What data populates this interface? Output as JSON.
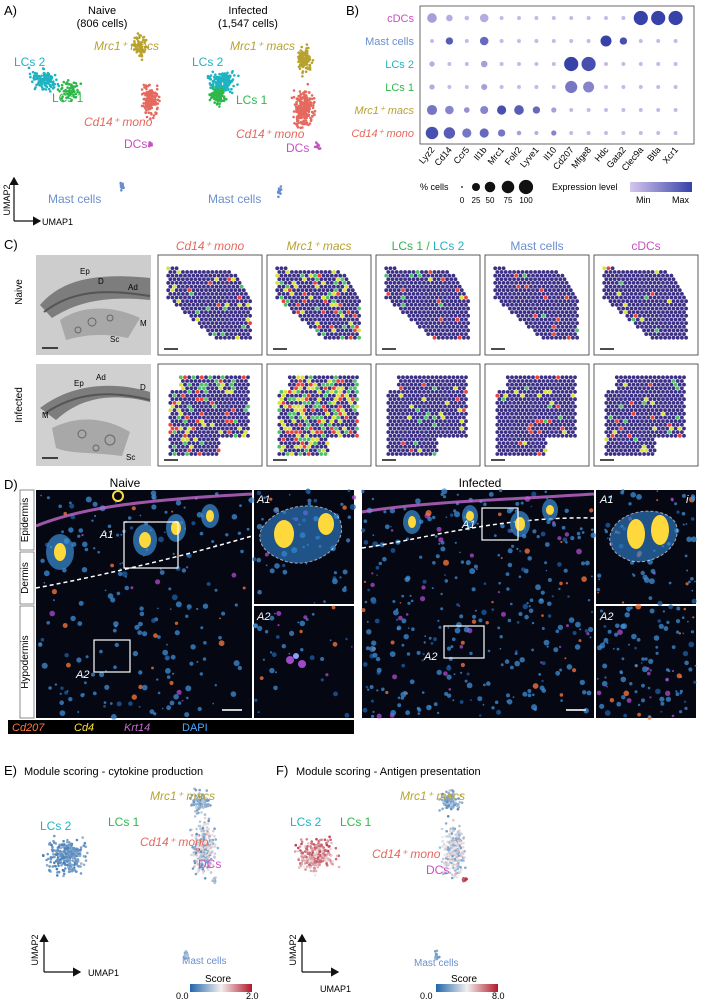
{
  "colors": {
    "lc2": "#1fb3c2",
    "lc1": "#2fb84a",
    "macs": "#b8a22e",
    "mono": "#e5695e",
    "dcs": "#c94fc3",
    "mast": "#6a8fd0",
    "expr_min": "#d5c7ee",
    "expr_max": "#3742a8",
    "tissue_bg": "#3b2f86"
  },
  "panelA": {
    "label": "A)",
    "naive_title": "Naive",
    "naive_count": "(806 cells)",
    "infected_title": "Infected",
    "infected_count": "(1,547 cells)",
    "cluster_lc2": "LCs 2",
    "cluster_lc1": "LCs 1",
    "cluster_macs": "Mrc1⁺ macs",
    "cluster_mono": "Cd14⁺ mono",
    "cluster_dcs": "DCs",
    "cluster_mast": "Mast cells",
    "axis_y": "UMAP2",
    "axis_x": "UMAP1"
  },
  "panelB": {
    "label": "B)",
    "size_legend_title": "% cells",
    "size_ticks": [
      "0",
      "25",
      "50",
      "75",
      "100"
    ],
    "color_legend_title": "Expression level",
    "color_min": "Min",
    "color_max": "Max"
  },
  "chart_data": {
    "type": "dotplot",
    "rows": [
      "cDCs",
      "Mast cells",
      "LCs 2",
      "LCs 1",
      "Mrc1⁺ macs",
      "Cd14⁺ mono"
    ],
    "genes": [
      "Lyz2",
      "Cd14",
      "Ccr5",
      "Il1b",
      "Mrc1",
      "Folr2",
      "Lyve1",
      "Il10",
      "Cd207",
      "Mfge8",
      "Hdc",
      "Gata2",
      "Clec9a",
      "Btla",
      "Xcr1"
    ],
    "percent": [
      [
        40,
        15,
        5,
        30,
        3,
        3,
        3,
        3,
        3,
        3,
        3,
        3,
        100,
        100,
        100
      ],
      [
        3,
        20,
        3,
        30,
        3,
        3,
        3,
        3,
        3,
        3,
        55,
        20,
        3,
        3,
        3
      ],
      [
        8,
        3,
        3,
        15,
        3,
        3,
        3,
        3,
        100,
        100,
        3,
        3,
        3,
        3,
        3
      ],
      [
        8,
        3,
        3,
        12,
        3,
        3,
        3,
        3,
        70,
        55,
        3,
        3,
        3,
        3,
        3
      ],
      [
        45,
        30,
        10,
        25,
        35,
        40,
        20,
        8,
        3,
        3,
        3,
        3,
        3,
        3,
        3
      ],
      [
        75,
        60,
        35,
        35,
        20,
        5,
        3,
        8,
        3,
        3,
        3,
        3,
        3,
        3,
        3
      ]
    ],
    "expression": [
      [
        0.3,
        0.2,
        0.1,
        0.2,
        0.1,
        0.1,
        0.1,
        0.1,
        0.1,
        0.1,
        0.1,
        0.1,
        1.0,
        1.0,
        1.0
      ],
      [
        0.1,
        0.8,
        0.1,
        0.7,
        0.1,
        0.1,
        0.1,
        0.1,
        0.1,
        0.1,
        1.0,
        0.9,
        0.1,
        0.1,
        0.1
      ],
      [
        0.2,
        0.1,
        0.1,
        0.3,
        0.1,
        0.1,
        0.1,
        0.1,
        1.0,
        0.9,
        0.1,
        0.1,
        0.1,
        0.1,
        0.1
      ],
      [
        0.2,
        0.1,
        0.1,
        0.3,
        0.1,
        0.1,
        0.1,
        0.1,
        0.6,
        0.5,
        0.1,
        0.1,
        0.1,
        0.1,
        0.1
      ],
      [
        0.6,
        0.5,
        0.4,
        0.5,
        0.9,
        0.8,
        0.7,
        0.3,
        0.1,
        0.1,
        0.1,
        0.1,
        0.1,
        0.1,
        0.1
      ],
      [
        0.9,
        0.8,
        0.6,
        0.7,
        0.6,
        0.3,
        0.2,
        0.5,
        0.1,
        0.1,
        0.1,
        0.1,
        0.1,
        0.1,
        0.1
      ]
    ]
  },
  "panelC": {
    "label": "C)",
    "col_headers": [
      "Cd14⁺ mono",
      "Mrc1⁺ macs",
      "LCs 1 / LCs 2",
      "Mast cells",
      "cDCs"
    ],
    "row_naive": "Naive",
    "row_infected": "Infected",
    "naive_annotations": [
      "Ep",
      "D",
      "Ad",
      "M",
      "Sc"
    ],
    "infected_annotations": [
      "Ep",
      "Ad",
      "D",
      "M",
      "Sc"
    ]
  },
  "panelD": {
    "label": "D)",
    "naive_title": "Naive",
    "infected_title": "Infected",
    "layer_epidermis": "Epidermis",
    "layer_dermis": "Dermis",
    "layer_hypodermis": "Hypodermis",
    "roi_a1": "A1",
    "roi_a2": "A2",
    "inset_i": "i",
    "stain_cd207": "Cd207",
    "stain_cd4": "Cd4",
    "stain_krt14": "Krt14",
    "stain_dapi": "DAPI"
  },
  "panelE": {
    "label": "E)",
    "title": "Module scoring - cytokine production",
    "score_title": "Score",
    "score_min": "0.0",
    "score_max": "2.0"
  },
  "panelF": {
    "label": "F)",
    "title": "Module scoring - Antigen presentation",
    "score_title": "Score",
    "score_min": "0.0",
    "score_max": "8.0"
  }
}
